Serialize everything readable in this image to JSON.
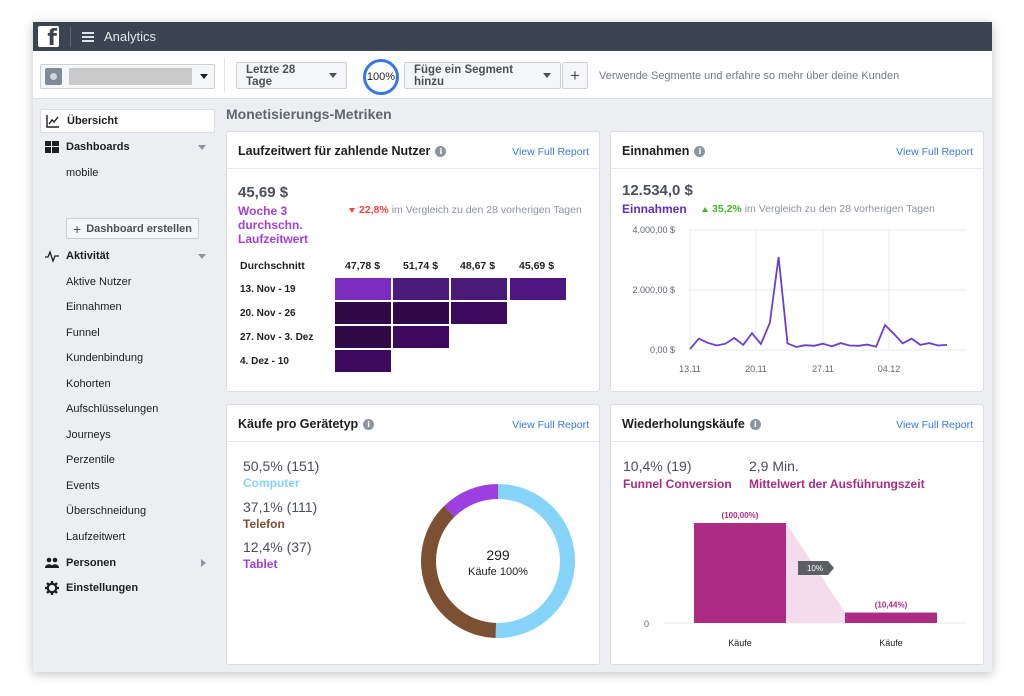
{
  "topbar": {
    "app_title": "Analytics"
  },
  "toolbar": {
    "date_range": "Letzte 28 Tage",
    "sample_pct": "100%",
    "segment_button": "Füge ein Segment hinzu",
    "plus": "+",
    "segment_hint": "Verwende Segmente und erfahre so mehr über deine Kunden"
  },
  "sidebar": {
    "overview": "Übersicht",
    "dashboards": "Dashboards",
    "dashboard_items": [
      "mobile"
    ],
    "create_dashboard": "Dashboard erstellen",
    "activity": "Aktivität",
    "activity_items": [
      "Aktive Nutzer",
      "Einnahmen",
      "Funnel",
      "Kundenbindung",
      "Kohorten",
      "Aufschlüsselungen",
      "Journeys",
      "Perzentile",
      "Events",
      "Überschneidung",
      "Laufzeitwert"
    ],
    "people": "Personen",
    "settings": "Einstellungen"
  },
  "main": {
    "section_title": "Monetisierungs-Metriken",
    "view_full_report": "View Full Report",
    "ltv": {
      "title": "Laufzeitwert für zahlende Nutzer",
      "value": "45,69 $",
      "label": "Woche 3 durchschn. Laufzeitwert",
      "change": "22,8%",
      "compare": "im Vergleich zu den 28 vorherigen Tagen",
      "avg_label": "Durchschnitt",
      "column_values": [
        "47,78 $",
        "51,74 $",
        "48,67 $",
        "45,69 $"
      ],
      "rows": [
        {
          "label": "13. Nov - 19",
          "cells": 4
        },
        {
          "label": "20. Nov - 26",
          "cells": 3
        },
        {
          "label": "27. Nov - 3. Dez",
          "cells": 2
        },
        {
          "label": "4. Dez - 10",
          "cells": 1
        }
      ],
      "colors": {
        "highlight": "#7b2cbf",
        "dark": "#2e0847",
        "mid": "#3d0a5f",
        "purple": "#4a1a78"
      }
    },
    "revenue": {
      "title": "Einnahmen",
      "value": "12.534,0 $",
      "label": "Einnahmen",
      "change": "35,2%",
      "compare": "im Vergleich zu den 28 vorherigen Tagen"
    },
    "devices": {
      "title": "Käufe pro Gerätetyp",
      "items": [
        {
          "value": "50,5% (151)",
          "name": "Computer",
          "color": "#87d4fb"
        },
        {
          "value": "37,1% (111)",
          "name": "Telefon",
          "color": "#7b5033"
        },
        {
          "value": "12,4% (37)",
          "name": "Tablet",
          "color": "#9d3ee0"
        }
      ],
      "center_value": "299",
      "center_label": "Käufe 100%"
    },
    "repeat": {
      "title": "Wiederholungskäufe",
      "conversion_value": "10,4% (19)",
      "conversion_label": "Funnel Conversion",
      "time_value": "2,9 Min.",
      "time_label": "Mittelwert der Ausführungszeit"
    }
  },
  "chart_data": [
    {
      "type": "line",
      "x_ticks": [
        "13.11",
        "20.11",
        "27.11",
        "04.12"
      ],
      "y_ticks": [
        "4.000,00 $",
        "2.000,00 $",
        "0,00 $"
      ],
      "ylim": [
        0,
        4000
      ],
      "series": [
        {
          "values": [
            30,
            380,
            240,
            150,
            210,
            400,
            170,
            560,
            200,
            900,
            3100,
            220,
            100,
            160,
            140,
            210,
            120,
            230,
            150,
            140,
            180,
            110,
            830,
            540,
            220,
            380,
            170,
            230,
            150,
            170
          ]
        }
      ],
      "color": "#6b3fd4",
      "grid": true
    },
    {
      "type": "pie",
      "labels": [
        "Computer",
        "Telefon",
        "Tablet"
      ],
      "values": [
        151,
        111,
        37
      ],
      "colors": [
        "#87d4fb",
        "#7b5033",
        "#9d3ee0"
      ]
    },
    {
      "type": "bar",
      "categories": [
        "Käufe",
        "Käufe"
      ],
      "values": [
        100.0,
        10.44
      ],
      "data_labels": [
        "(100,00%)",
        "(10,44%)"
      ],
      "conversion_label": "10%",
      "y_ticks": [
        "0"
      ],
      "color": "#ac2b83"
    }
  ]
}
